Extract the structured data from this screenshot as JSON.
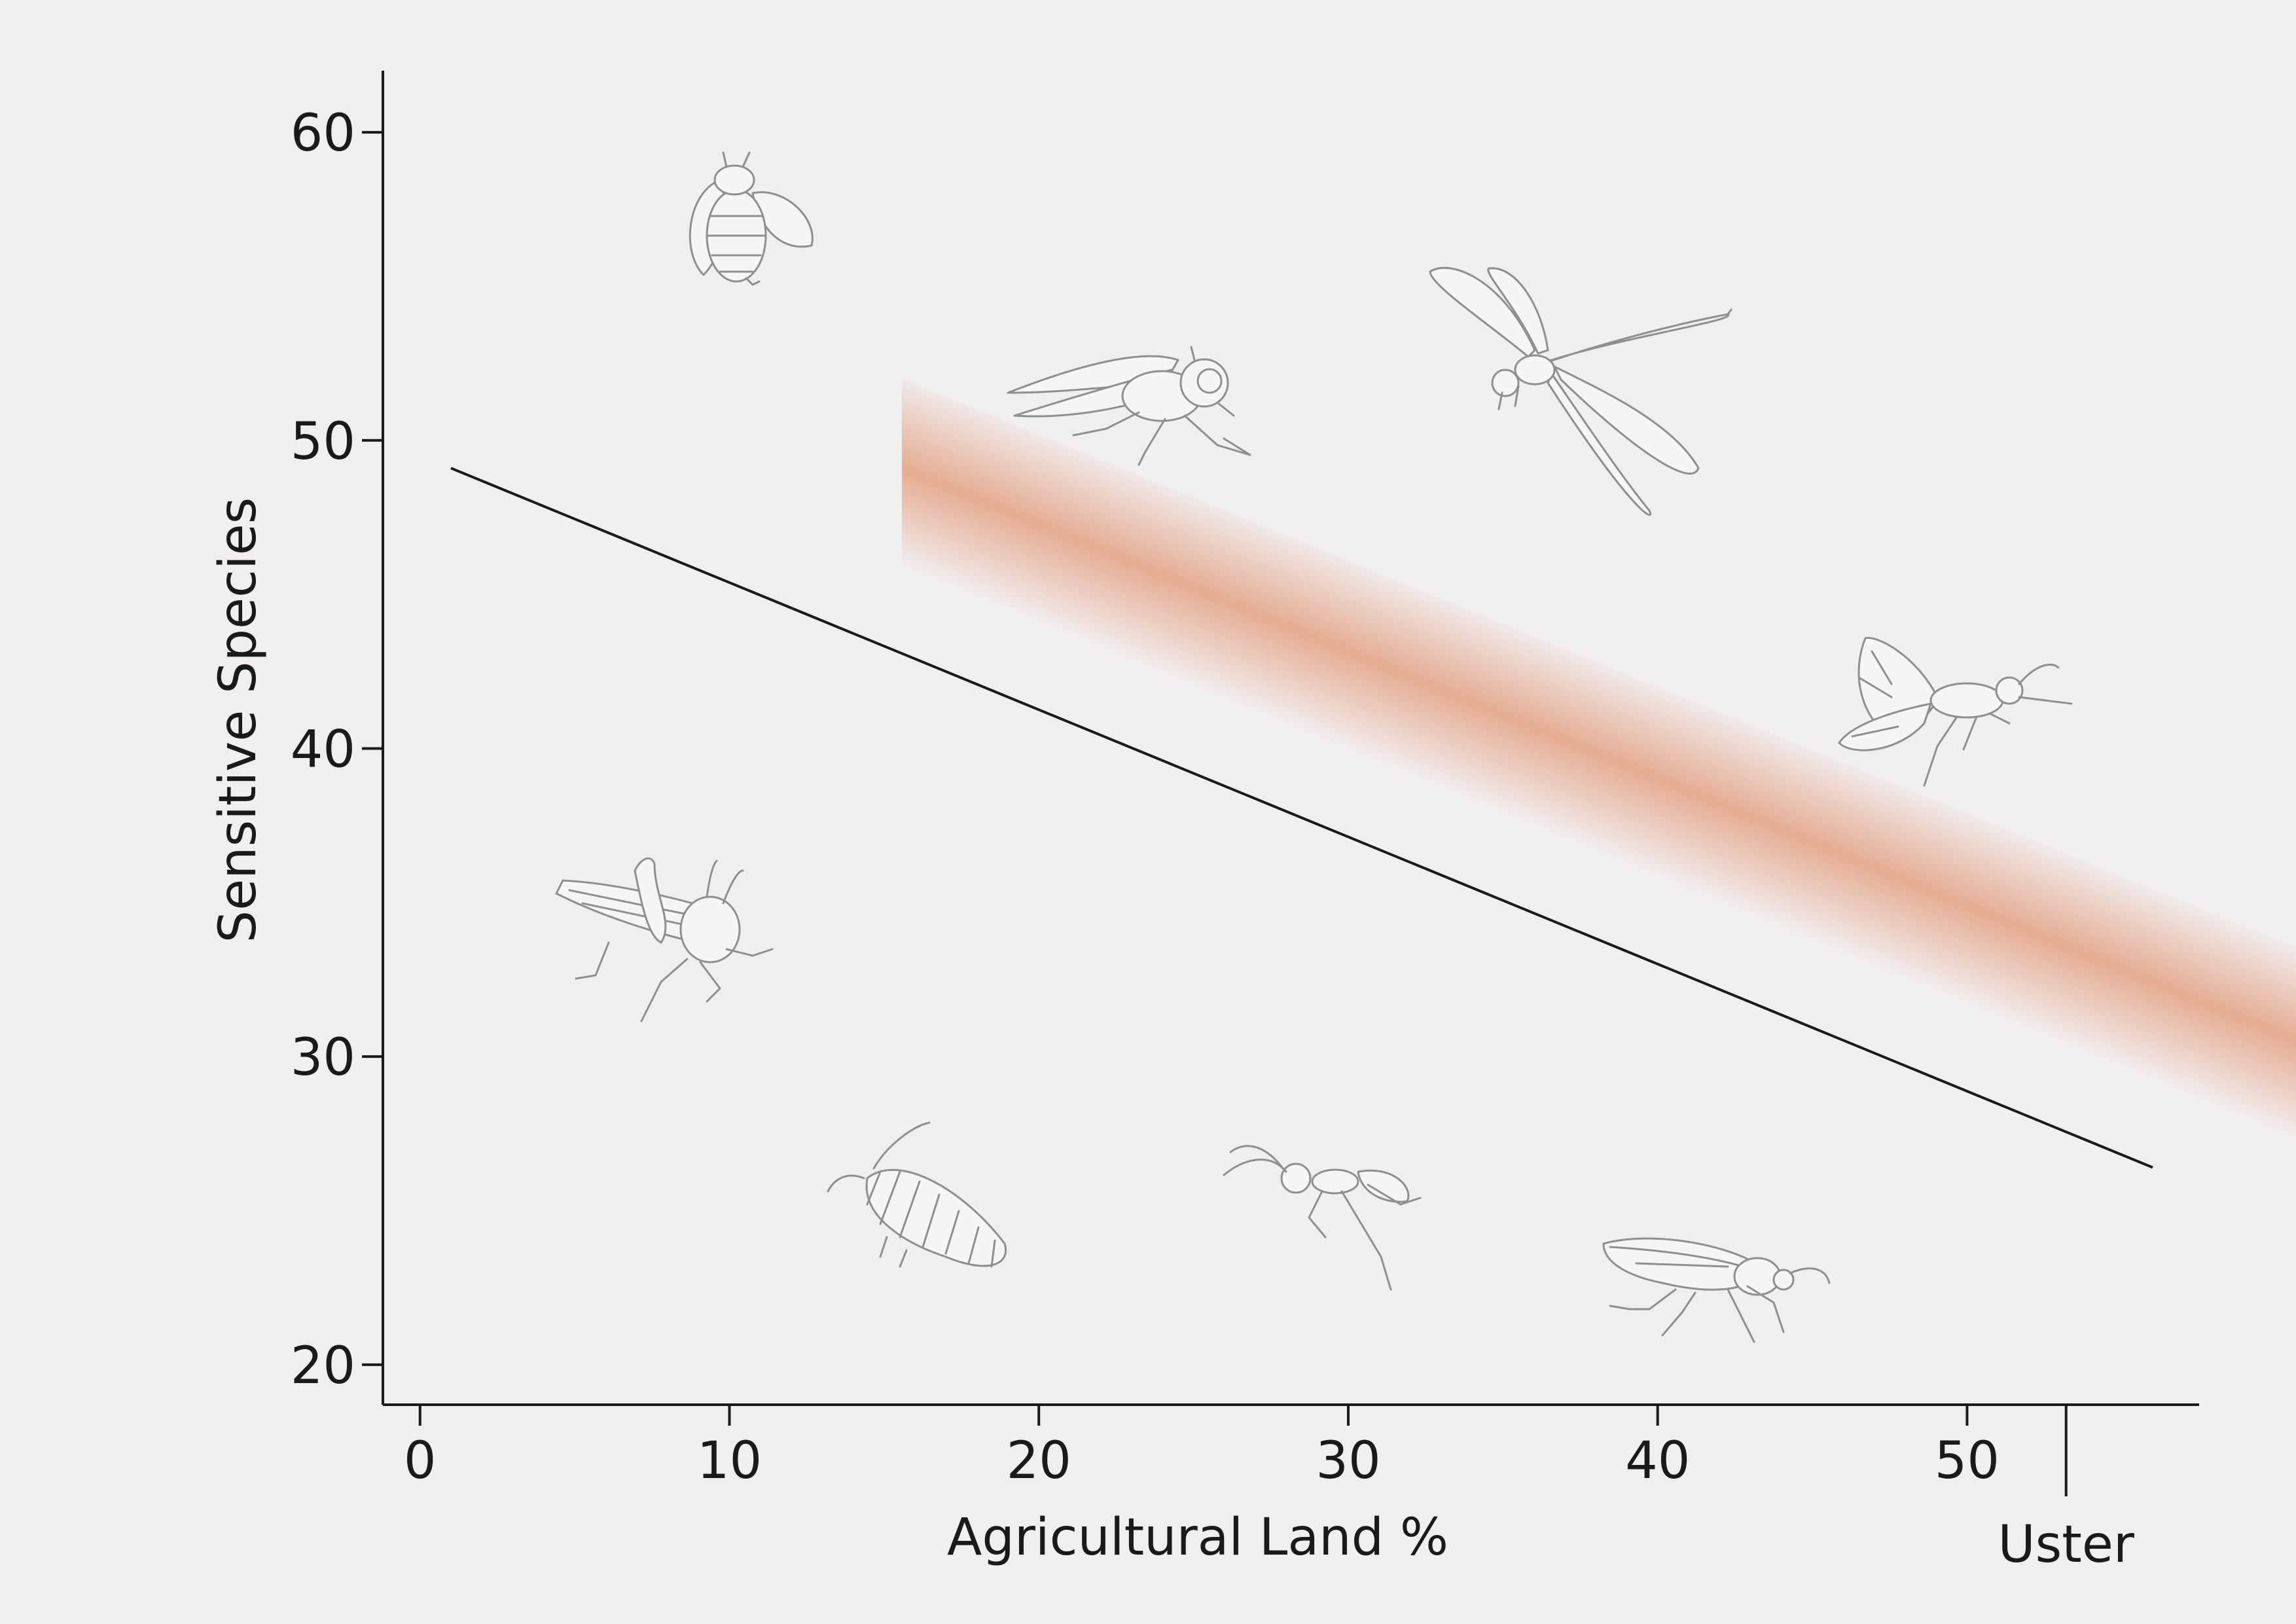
{
  "chart_data": {
    "type": "line",
    "xlabel": "Agricultural Land %",
    "ylabel": "Sensitive Species",
    "xlim": [
      -1.2,
      57.5
    ],
    "ylim": [
      18.7,
      62
    ],
    "x_ticks": [
      0,
      10,
      20,
      30,
      40,
      50
    ],
    "y_ticks": [
      20,
      30,
      40,
      50,
      60
    ],
    "series": [
      {
        "x": [
          1,
          56
        ],
        "y": [
          49.1,
          26.4
        ],
        "confidence_band": {
          "upper": [
            52.0,
            29.5
          ],
          "lower": [
            45.5,
            23.0
          ]
        }
      }
    ],
    "reference_marker": {
      "x": 53.2,
      "label": "Uster"
    },
    "colors": {
      "line": "#1a1a1a",
      "band": "#e3a588",
      "background": "#f1eeef",
      "illustrations": "#8f8f8f"
    },
    "grid": false,
    "legend": "none",
    "illustrations": [
      "bee-icon",
      "housefly-icon",
      "dragonfly-icon",
      "moth-icon",
      "grasshopper-icon",
      "larva-icon",
      "ant-icon",
      "shield-bug-icon"
    ]
  }
}
